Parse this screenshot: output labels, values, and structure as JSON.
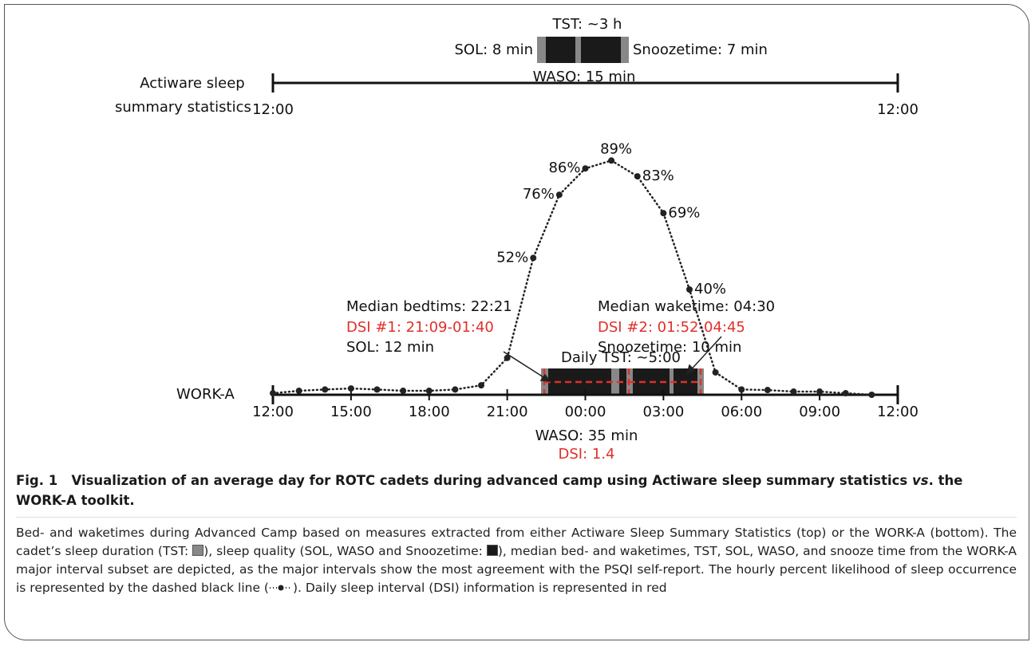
{
  "chart_data": {
    "type": "line",
    "x": [
      0,
      1,
      2,
      3,
      4,
      5,
      6,
      7,
      8,
      9,
      10,
      11,
      12,
      13,
      14,
      15,
      16,
      17,
      18,
      19,
      20,
      21,
      22,
      23
    ],
    "values": [
      0.6,
      1.5,
      2,
      2.4,
      2,
      1.5,
      1.5,
      2,
      3.6,
      14,
      52,
      76,
      86,
      89,
      83,
      69,
      40,
      8.5,
      2,
      1.8,
      1.2,
      1.2,
      0.6,
      0
    ],
    "value_labels": [
      null,
      null,
      null,
      null,
      null,
      null,
      null,
      null,
      null,
      null,
      "52%",
      "76%",
      "86%",
      "89%",
      "83%",
      "69%",
      "40%",
      null,
      null,
      null,
      null,
      null,
      null,
      null
    ],
    "color": "#222222",
    "xlim": [
      0,
      24
    ],
    "ylim": [
      0,
      100
    ],
    "xticks": [
      {
        "value": 0,
        "label": "12:00"
      },
      {
        "value": 3,
        "label": "15:00"
      },
      {
        "value": 6,
        "label": "18:00"
      },
      {
        "value": 9,
        "label": "21:00"
      },
      {
        "value": 12,
        "label": "00:00"
      },
      {
        "value": 15,
        "label": "03:00"
      },
      {
        "value": 18,
        "label": "06:00"
      },
      {
        "value": 21,
        "label": "09:00"
      },
      {
        "value": 24,
        "label": "12:00"
      }
    ],
    "axis_label": "WORK-A",
    "annotations": {
      "bed": [
        "Median bedtims: 22:21",
        "DSI #1: 21:09-01:40",
        "SOL: 12 min"
      ],
      "wake": [
        "Median waketime: 04:30",
        "DSI #2: 01:52-04:45",
        "Snoozetime: 10 min"
      ],
      "tst": "Daily TST: ~5:00",
      "waso": "WASO: 35 min",
      "dsi": "DSI: 1.4"
    },
    "top": {
      "label": [
        "Actiware sleep",
        "summary statistics"
      ],
      "start": "12:00",
      "end": "12:00",
      "tst": "TST: ~3 h",
      "sol": "SOL: 8 min",
      "snooze": "Snoozetime: 7 min",
      "waso": "WASO: 15 min"
    }
  },
  "caption": {
    "label": "Fig. 1",
    "title": [
      "Visualization of an average day for ROTC cadets during advanced camp using Actiware sleep summary statistics ",
      "vs",
      ". the WORK-A toolkit."
    ],
    "body": [
      "Bed- and waketimes during Advanced Camp based on measures extracted from either Actiware Sleep Summary Statistics (top) or the WORK-A (bottom). The cadet’s sleep duration (TST: ",
      "), sleep quality (SOL, WASO and Snoozetime: ",
      "), median bed- and waketimes, TST, SOL, WASO, and snooze time from the WORK-A major interval subset are depicted, as the major intervals show the most agreement with the PSQI self-report. The hourly percent likelihood of sleep occurrence is represented by the dashed black line (",
      "). Daily sleep interval (DSI) information is represented in red"
    ]
  }
}
